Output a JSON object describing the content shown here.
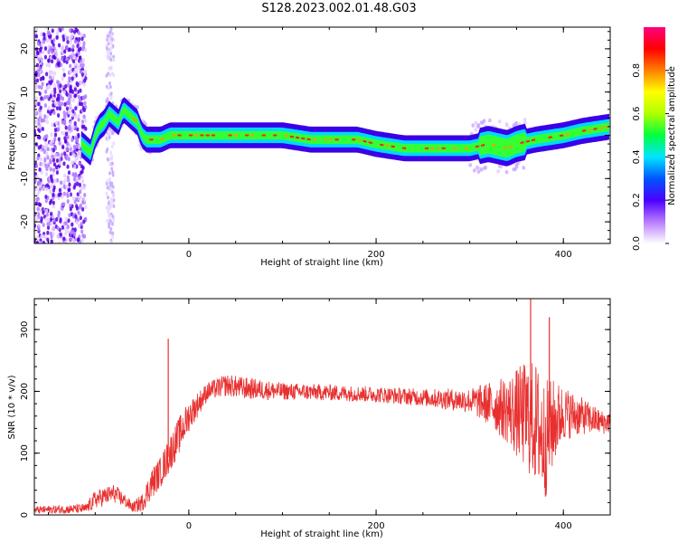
{
  "title": "S128.2023.002.01.48.G03",
  "chart_data": [
    {
      "type": "heatmap",
      "xlabel": "Height of straight line (km)",
      "ylabel": "Frequency (Hz)",
      "xlim": [
        -165,
        450
      ],
      "ylim": [
        -25,
        25
      ],
      "x_ticks": [
        0,
        200,
        400
      ],
      "y_ticks": [
        -20,
        -10,
        0,
        10,
        20
      ],
      "ridge": {
        "x": [
          -115,
          -105,
          -100,
          -95,
          -90,
          -85,
          -80,
          -75,
          -70,
          -65,
          -60,
          -55,
          -50,
          -45,
          -40,
          -30,
          -20,
          0,
          50,
          100,
          130,
          180,
          200,
          230,
          260,
          300,
          320,
          340,
          350,
          370,
          400,
          420,
          450
        ],
        "y": [
          -2,
          -4,
          0,
          2,
          3,
          5,
          4,
          3,
          6,
          5,
          4,
          3,
          0,
          -1,
          -1,
          -1,
          0,
          0,
          0,
          0,
          -1,
          -1,
          -2,
          -3,
          -3,
          -3,
          -2,
          -3,
          -2,
          -1,
          0,
          1,
          2
        ]
      },
      "colorbar": {
        "label": "Normalized spectral amplitude",
        "ticks": [
          0.0,
          0.2,
          0.4,
          0.6,
          0.8
        ],
        "colors": [
          "#ffffff",
          "#b87cff",
          "#4a00ff",
          "#0055ff",
          "#00e5ff",
          "#00ff40",
          "#b0ff00",
          "#ffff00",
          "#ff8000",
          "#ff0000",
          "#ff0080"
        ]
      }
    },
    {
      "type": "line",
      "xlabel": "Height of straight line (km)",
      "ylabel": "SNR (10 * v/v)",
      "xlim": [
        -165,
        450
      ],
      "ylim": [
        0,
        350
      ],
      "x_ticks": [
        0,
        200,
        400
      ],
      "y_ticks": [
        0,
        100,
        200,
        300
      ],
      "color": "#e83030",
      "envelope": {
        "x": [
          -165,
          -110,
          -100,
          -90,
          -80,
          -70,
          -60,
          -50,
          -40,
          -30,
          -20,
          -10,
          0,
          10,
          20,
          40,
          60,
          100,
          150,
          200,
          250,
          300,
          320,
          340,
          360,
          370,
          380,
          390,
          400,
          420,
          440,
          450
        ],
        "mean": [
          8,
          10,
          25,
          30,
          35,
          25,
          12,
          20,
          50,
          70,
          100,
          130,
          160,
          180,
          200,
          210,
          205,
          200,
          198,
          195,
          190,
          185,
          180,
          170,
          160,
          150,
          120,
          150,
          165,
          160,
          150,
          150
        ],
        "amp": [
          6,
          8,
          15,
          15,
          15,
          12,
          8,
          15,
          25,
          25,
          30,
          30,
          25,
          20,
          15,
          18,
          18,
          14,
          13,
          13,
          14,
          20,
          35,
          55,
          90,
          100,
          100,
          70,
          45,
          30,
          20,
          18
        ]
      },
      "spikes": [
        {
          "x": -22,
          "y": 285
        },
        {
          "x": 365,
          "y": 350
        },
        {
          "x": 385,
          "y": 320
        }
      ]
    }
  ]
}
